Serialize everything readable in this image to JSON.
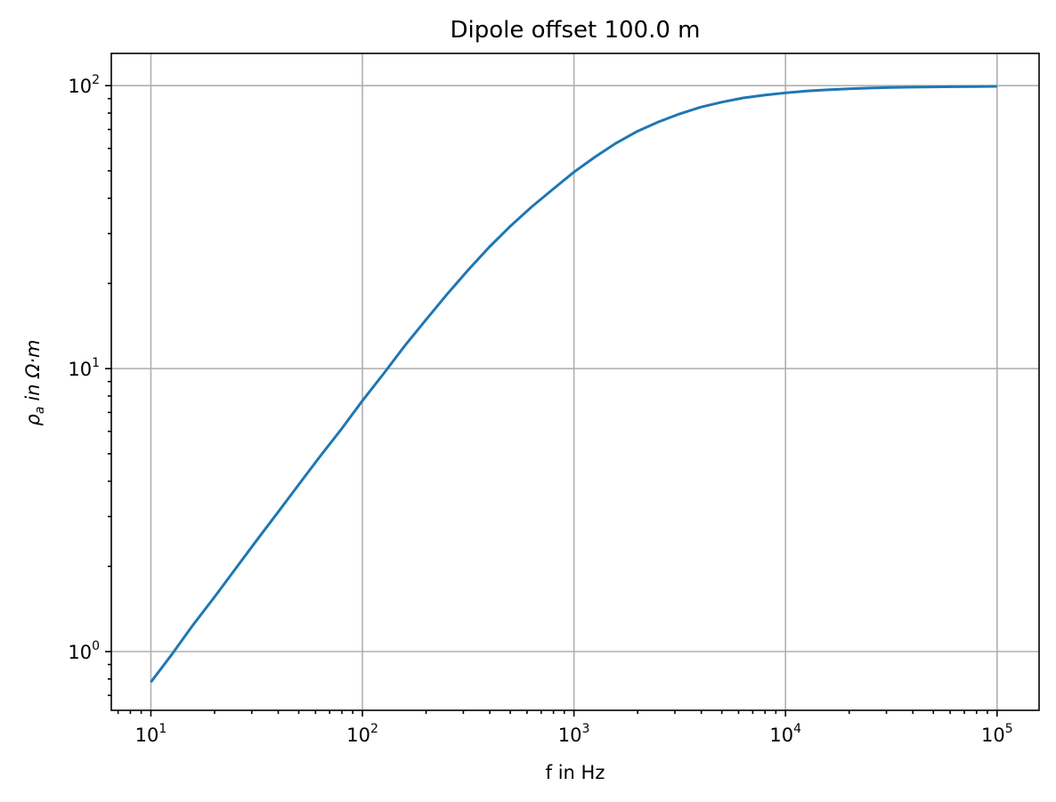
{
  "chart_data": {
    "type": "line",
    "title": "Dipole offset 100.0 m",
    "xlabel": "f in Hz",
    "ylabel": {
      "rho": "ρ",
      "sub": "a",
      "rest": "in Ω·m"
    },
    "xscale": "log",
    "yscale": "log",
    "xlim": [
      6.5,
      158000
    ],
    "ylim": [
      0.62,
      130
    ],
    "grid": true,
    "x_ticks": [
      {
        "value": 10,
        "base": "10",
        "exp": "1"
      },
      {
        "value": 100,
        "base": "10",
        "exp": "2"
      },
      {
        "value": 1000,
        "base": "10",
        "exp": "3"
      },
      {
        "value": 10000,
        "base": "10",
        "exp": "4"
      },
      {
        "value": 100000,
        "base": "10",
        "exp": "5"
      }
    ],
    "y_ticks": [
      {
        "value": 1,
        "base": "10",
        "exp": "0"
      },
      {
        "value": 10,
        "base": "10",
        "exp": "1"
      },
      {
        "value": 100,
        "base": "10",
        "exp": "2"
      }
    ],
    "line_color": "#1f77b4",
    "series": [
      {
        "x": [
          10,
          12.6,
          15.8,
          20,
          25.1,
          31.6,
          39.8,
          50.1,
          63.1,
          79.4,
          100,
          126,
          158,
          200,
          251,
          316,
          398,
          501,
          631,
          794,
          1000,
          1259,
          1585,
          1995,
          2512,
          3162,
          3981,
          5012,
          6310,
          7943,
          10000,
          12589,
          15849,
          19953,
          25119,
          31623,
          39811,
          50119,
          63096,
          79433,
          100000
        ],
        "y": [
          0.78,
          0.98,
          1.24,
          1.56,
          1.96,
          2.47,
          3.1,
          3.9,
          4.9,
          6.1,
          7.7,
          9.6,
          12.0,
          14.9,
          18.3,
          22.3,
          26.9,
          31.9,
          37.3,
          43.0,
          49.5,
          56.0,
          62.7,
          69.0,
          74.5,
          79.5,
          84.0,
          87.5,
          90.5,
          92.6,
          94.3,
          95.7,
          96.7,
          97.5,
          98.1,
          98.5,
          98.8,
          99.0,
          99.2,
          99.3,
          99.4
        ]
      }
    ]
  }
}
